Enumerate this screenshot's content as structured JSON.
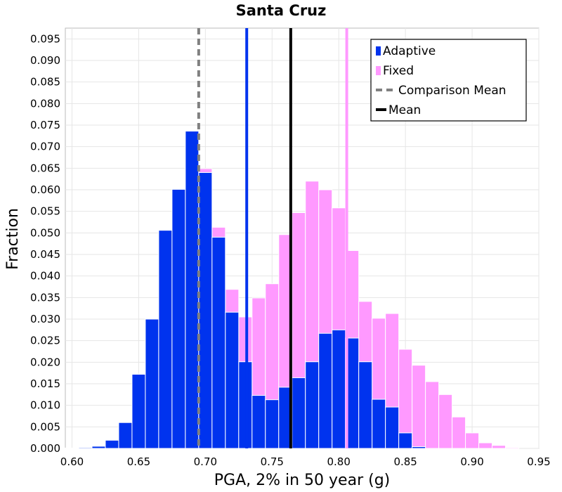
{
  "chart_data": {
    "type": "bar",
    "title": "Santa Cruz",
    "xlabel": "PGA, 2% in 50 year (g)",
    "ylabel": "Fraction",
    "xlim": [
      0.595,
      0.95
    ],
    "ylim": [
      0,
      0.0975
    ],
    "grid": true,
    "legend_placement": "top-right",
    "bin_width": 0.01,
    "xticks": [
      "0.60",
      "0.65",
      "0.70",
      "0.75",
      "0.80",
      "0.85",
      "0.90",
      "0.95"
    ],
    "yticks": [
      "0.000",
      "0.005",
      "0.010",
      "0.015",
      "0.020",
      "0.025",
      "0.030",
      "0.035",
      "0.040",
      "0.045",
      "0.050",
      "0.055",
      "0.060",
      "0.065",
      "0.070",
      "0.075",
      "0.080",
      "0.085",
      "0.090",
      "0.095"
    ],
    "bin_centers": [
      0.6,
      0.61,
      0.62,
      0.63,
      0.64,
      0.65,
      0.66,
      0.67,
      0.68,
      0.69,
      0.7,
      0.71,
      0.72,
      0.73,
      0.74,
      0.75,
      0.76,
      0.77,
      0.78,
      0.79,
      0.8,
      0.81,
      0.82,
      0.83,
      0.84,
      0.85,
      0.86,
      0.87,
      0.88,
      0.89,
      0.9,
      0.91,
      0.92,
      0.93
    ],
    "series": [
      {
        "name": "Fixed",
        "color": "#ff99ff",
        "values": [
          0.0,
          0.0,
          0.0,
          0.0,
          0.0,
          0.0,
          0.0,
          0.0,
          0.0,
          0.0,
          0.0649,
          0.0513,
          0.0369,
          0.0305,
          0.0349,
          0.0382,
          0.0496,
          0.0547,
          0.062,
          0.06,
          0.0558,
          0.0459,
          0.0341,
          0.0302,
          0.0313,
          0.023,
          0.0193,
          0.0155,
          0.0125,
          0.0073,
          0.0036,
          0.0013,
          0.0007,
          0.0002
        ]
      },
      {
        "name": "Adaptive",
        "color": "#0033ee",
        "values": [
          0.0001,
          0.0002,
          0.0005,
          0.0019,
          0.006,
          0.0172,
          0.03,
          0.0506,
          0.0601,
          0.0736,
          0.064,
          0.049,
          0.0316,
          0.0201,
          0.0123,
          0.0113,
          0.0142,
          0.0164,
          0.0201,
          0.0267,
          0.0275,
          0.0256,
          0.0201,
          0.0114,
          0.0096,
          0.0036,
          0.0004,
          0.0,
          0.0,
          0.0,
          0.0,
          0.0,
          0.0,
          0.0
        ]
      }
    ],
    "lines": [
      {
        "name": "Adaptive mean",
        "x": 0.731,
        "color": "#0033ee",
        "style": "solid"
      },
      {
        "name": "Fixed mean",
        "x": 0.806,
        "color": "#ff99ff",
        "style": "solid"
      },
      {
        "name": "Comparison Mean",
        "x": 0.695,
        "color": "#808080",
        "style": "dashed"
      },
      {
        "name": "Mean",
        "x": 0.764,
        "color": "#000000",
        "style": "solid"
      }
    ],
    "legend": [
      {
        "label": "Adaptive",
        "color": "#0033ee",
        "kind": "box"
      },
      {
        "label": "Fixed",
        "color": "#ff99ff",
        "kind": "box"
      },
      {
        "label": "Comparison Mean",
        "color": "#808080",
        "kind": "dashed"
      },
      {
        "label": "Mean",
        "color": "#000000",
        "kind": "line"
      }
    ]
  }
}
